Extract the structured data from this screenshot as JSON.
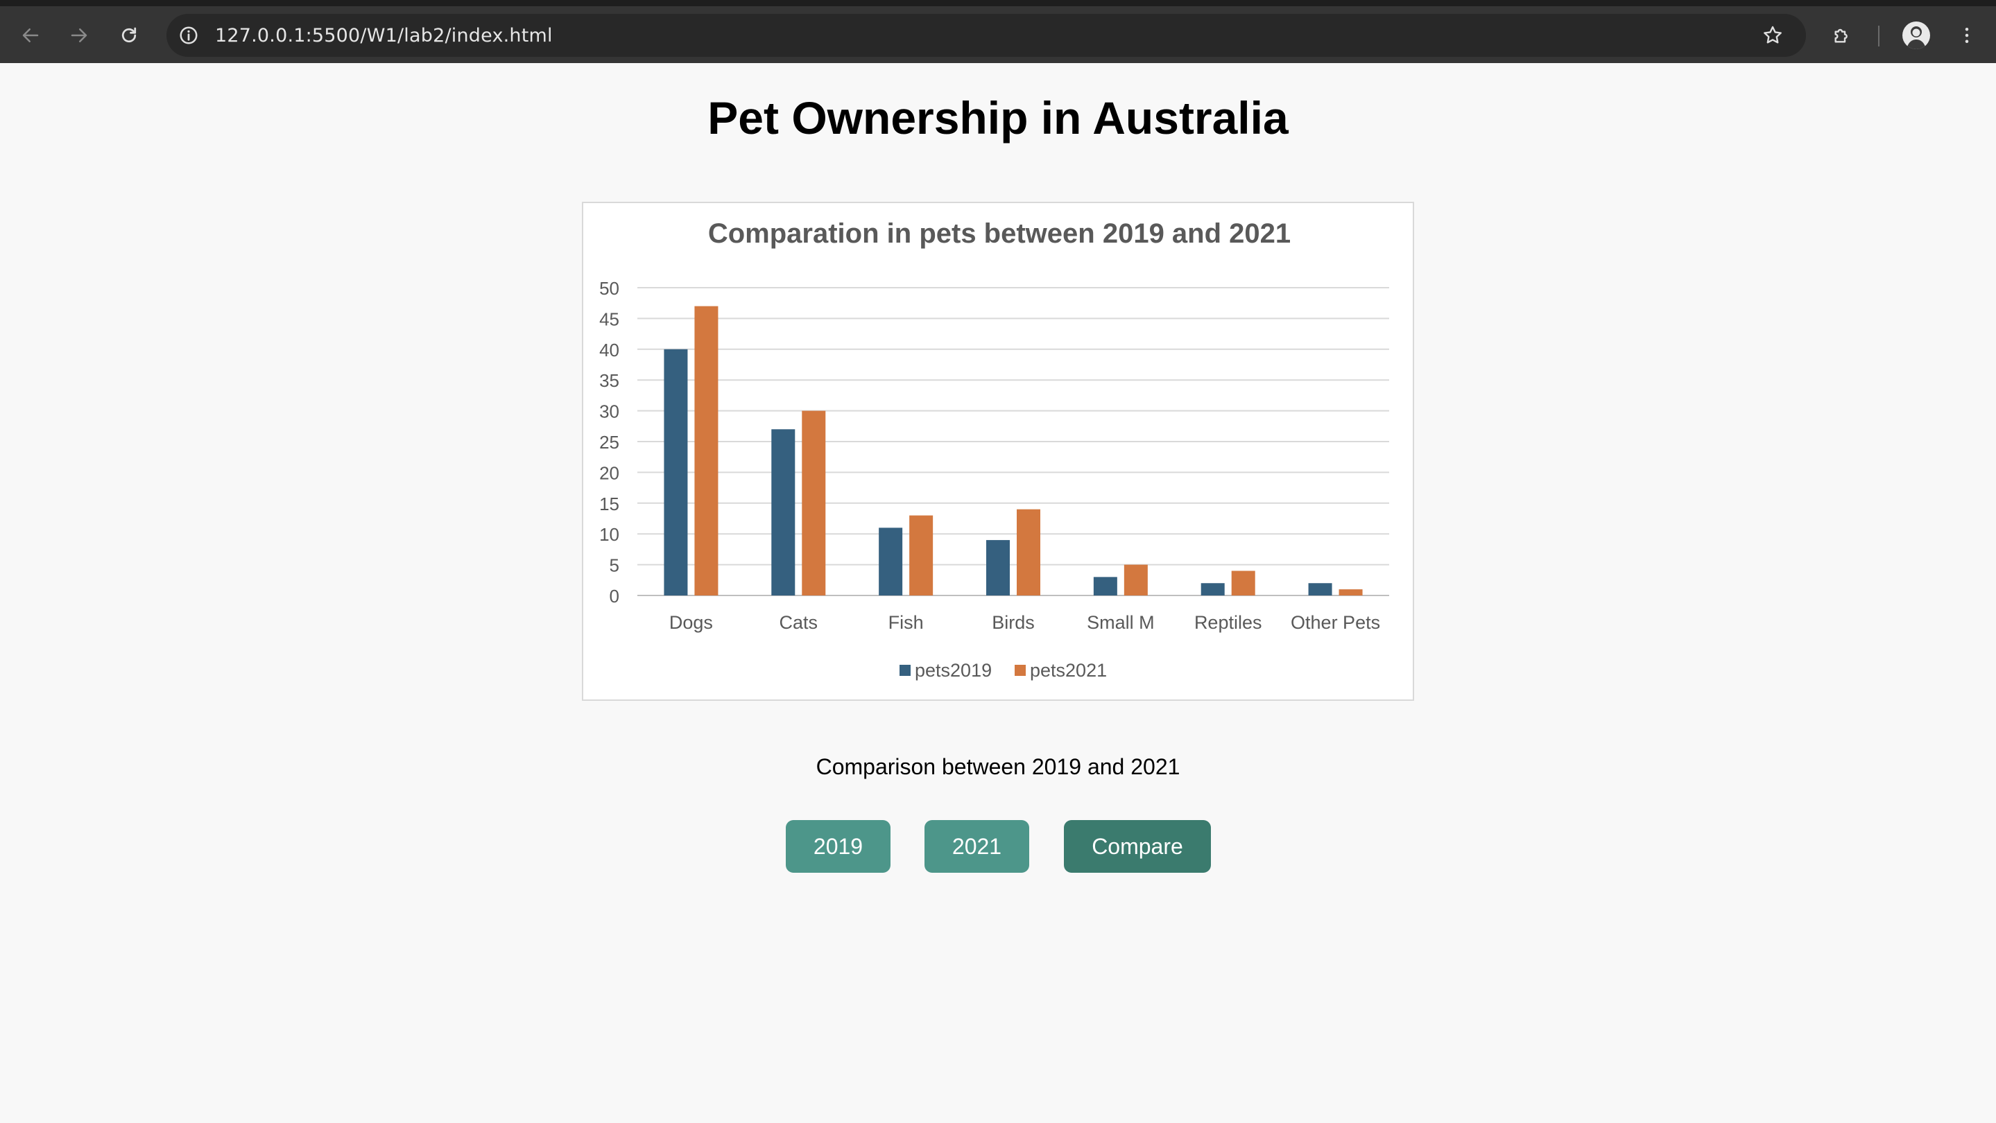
{
  "browser": {
    "url": "127.0.0.1:5500/W1/lab2/index.html",
    "icons": {
      "back": "back-arrow-icon",
      "forward": "forward-arrow-icon",
      "reload": "reload-icon",
      "site_info": "info-icon",
      "bookmark": "star-icon",
      "extensions": "puzzle-icon",
      "profile": "avatar",
      "menu": "kebab-menu-icon"
    }
  },
  "page": {
    "title": "Pet Ownership in Australia",
    "caption": "Comparison between 2019 and 2021",
    "buttons": {
      "b2019": "2019",
      "b2021": "2021",
      "compare": "Compare"
    },
    "colors": {
      "button": "#4d968a",
      "button_active": "#3b7b6e"
    }
  },
  "chart_data": {
    "type": "bar",
    "title": "Comparation in pets between 2019 and 2021",
    "categories": [
      "Dogs",
      "Cats",
      "Fish",
      "Birds",
      "Small M",
      "Reptiles",
      "Other Pets"
    ],
    "series": [
      {
        "name": "pets2019",
        "color": "#35607f",
        "values": [
          40,
          27,
          11,
          9,
          3,
          2,
          2
        ]
      },
      {
        "name": "pets2021",
        "color": "#d3783f",
        "values": [
          47,
          30,
          13,
          14,
          5,
          4,
          1
        ]
      }
    ],
    "ylim": [
      0,
      50
    ],
    "yticks": [
      0,
      5,
      10,
      15,
      20,
      25,
      30,
      35,
      40,
      45,
      50
    ],
    "grid": true,
    "legend": "bottom"
  }
}
